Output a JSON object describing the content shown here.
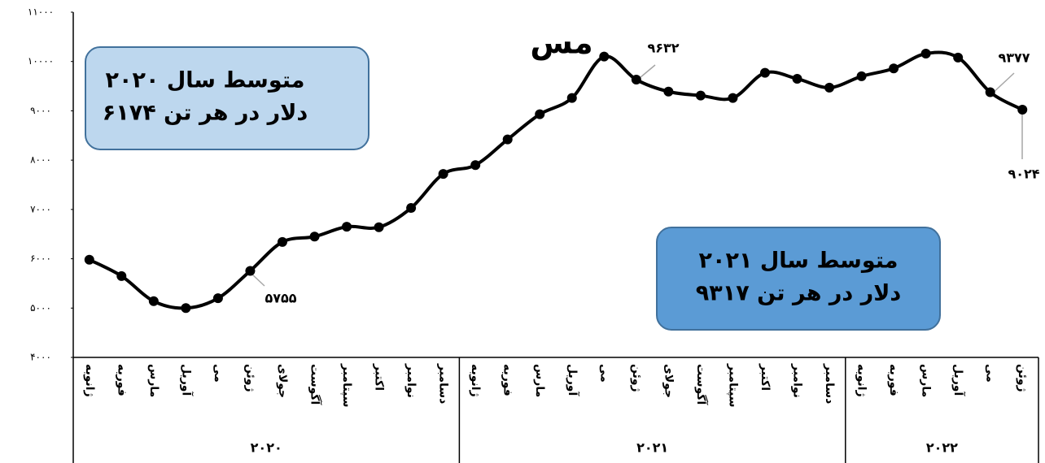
{
  "chart_data": {
    "type": "line",
    "title": "مس",
    "year_groups": [
      {
        "name": "۲۰۲۰",
        "months": [
          "ژانویه",
          "فوریه",
          "مارس",
          "آوریل",
          "می",
          "ژوئن",
          "جولای",
          "آگوست",
          "سپتامبر",
          "اکتبر",
          "نوامبر",
          "دسامبر"
        ]
      },
      {
        "name": "۲۰۲۱",
        "months": [
          "ژانویه",
          "فوریه",
          "مارس",
          "آوریل",
          "می",
          "ژوئن",
          "جولای",
          "آگوست",
          "سپتامبر",
          "اکتبر",
          "نوامبر",
          "دسامبر"
        ]
      },
      {
        "name": "۲۰۲۲",
        "months": [
          "ژانویه",
          "فوریه",
          "مارس",
          "آوریل",
          "می",
          "ژوئن"
        ]
      }
    ],
    "series": [
      {
        "color": "#000000",
        "values": [
          5980,
          5650,
          5140,
          5000,
          5200,
          5755,
          6340,
          6450,
          6650,
          6640,
          7030,
          7720,
          7900,
          8420,
          8930,
          9260,
          10100,
          9632,
          9390,
          9310,
          9260,
          9770,
          9650,
          9470,
          9700,
          9860,
          10160,
          10080,
          9377,
          9024
        ],
        "value_labels": [
          null,
          null,
          null,
          null,
          null,
          "۵۷۵۵",
          null,
          null,
          null,
          null,
          null,
          null,
          null,
          null,
          null,
          null,
          null,
          "۹۶۳۲",
          null,
          null,
          null,
          null,
          null,
          null,
          null,
          null,
          null,
          null,
          "۹۳۷۷",
          "۹۰۲۴"
        ]
      }
    ],
    "ylim": [
      4000,
      11000
    ],
    "yticks": [
      {
        "value": 4000,
        "label": "۴۰۰۰"
      },
      {
        "value": 5000,
        "label": "۵۰۰۰"
      },
      {
        "value": 6000,
        "label": "۶۰۰۰"
      },
      {
        "value": 7000,
        "label": "۷۰۰۰"
      },
      {
        "value": 8000,
        "label": "۸۰۰۰"
      },
      {
        "value": 9000,
        "label": "۹۰۰۰"
      },
      {
        "value": 10000,
        "label": "۱۰۰۰۰"
      },
      {
        "value": 11000,
        "label": "۱۱۰۰۰"
      }
    ],
    "annotations": [
      {
        "lines": [
          "متوسط سال ۲۰۲۰",
          "۶۱۷۴ دلار در هر تن"
        ]
      },
      {
        "lines": [
          "متوسط سال ۲۰۲۱",
          "۹۳۱۷ دلار در هر تن"
        ]
      }
    ]
  }
}
